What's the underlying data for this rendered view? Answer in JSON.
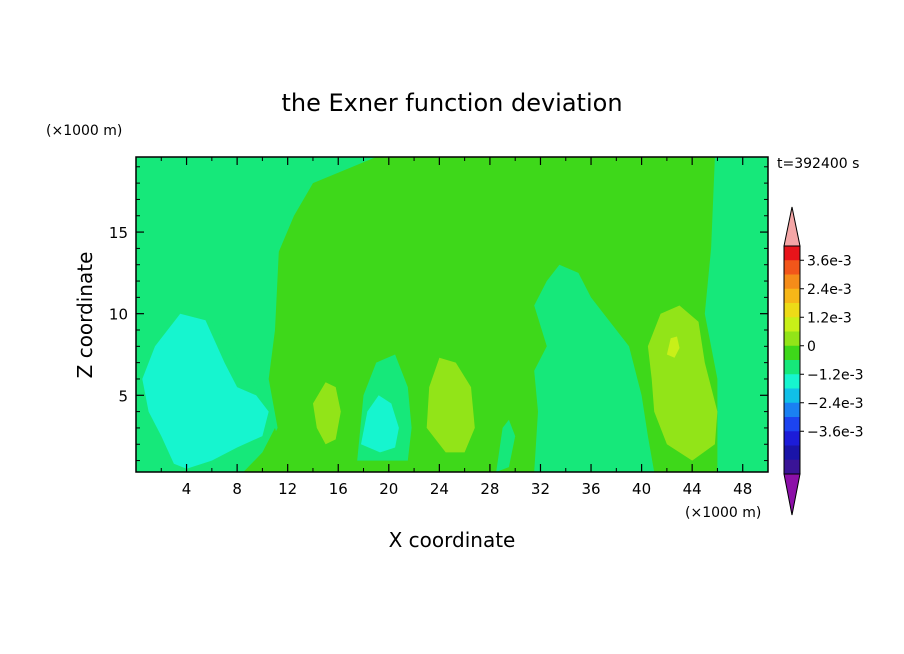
{
  "chart_data": {
    "type": "heatmap",
    "title": "the Exner function deviation",
    "xlabel": "X coordinate",
    "ylabel": "Z coordinate",
    "x_unit": "(×1000 m)",
    "y_unit": "(×1000 m)",
    "time_label": "t=392400 s",
    "xlim": [
      0,
      50
    ],
    "ylim": [
      0.3,
      19.6
    ],
    "x_ticks": [
      4,
      8,
      12,
      16,
      20,
      24,
      28,
      32,
      36,
      40,
      44,
      48
    ],
    "y_ticks": [
      5,
      10,
      15
    ],
    "colorbar": {
      "labels": [
        "3.6e-3",
        "2.4e-3",
        "1.2e-3",
        "0",
        "−1.2e-3",
        "−2.4e-3",
        "−3.6e-3"
      ],
      "colors_top_to_bottom": [
        "#f4a6a6",
        "#e8141a",
        "#f2561a",
        "#f58c19",
        "#f7b718",
        "#eddb17",
        "#c8f018",
        "#92e418",
        "#3ed81a",
        "#16e87a",
        "#16f5cf",
        "#10c0e8",
        "#1a80f2",
        "#1c44f0",
        "#1c1cd8",
        "#1a14a8",
        "#3a1496",
        "#8c10a8"
      ]
    },
    "regions": [
      {
        "level": "0",
        "color": "#3ed81a",
        "polygon": [
          [
            9.5,
            0.3
          ],
          [
            46,
            0.3
          ],
          [
            46,
            6
          ],
          [
            45,
            10
          ],
          [
            45.5,
            14
          ],
          [
            45.8,
            19.6
          ],
          [
            19,
            19.6
          ],
          [
            14,
            18
          ],
          [
            12.5,
            16
          ],
          [
            11.3,
            13.8
          ],
          [
            11,
            9
          ],
          [
            10.5,
            6
          ],
          [
            11.2,
            3
          ]
        ]
      },
      {
        "level": "0",
        "color": "#3ed81a",
        "polygon": [
          [
            8.5,
            0.3
          ],
          [
            12,
            0.3
          ],
          [
            11,
            3
          ],
          [
            10,
            1.5
          ]
        ]
      },
      {
        "level": "-1.2e-3",
        "color": "#16e87a",
        "polygon": [
          [
            0,
            6.5
          ],
          [
            2.5,
            9
          ],
          [
            6,
            9.5
          ],
          [
            7.8,
            7.5
          ],
          [
            9.5,
            5.5
          ],
          [
            10.5,
            4
          ],
          [
            10,
            2
          ],
          [
            8,
            1.5
          ],
          [
            6,
            1
          ],
          [
            5,
            0.5
          ],
          [
            0,
            0.3
          ]
        ]
      },
      {
        "level": "-1.2e-3",
        "color": "#16f5cf",
        "polygon": [
          [
            0.5,
            6
          ],
          [
            1.5,
            8
          ],
          [
            3.5,
            10
          ],
          [
            5.5,
            9.6
          ],
          [
            7,
            7
          ],
          [
            8,
            5.5
          ],
          [
            9.5,
            5
          ],
          [
            10.5,
            4
          ],
          [
            10,
            2.5
          ],
          [
            8,
            1.8
          ],
          [
            6,
            1
          ],
          [
            4,
            0.5
          ],
          [
            3,
            0.8
          ],
          [
            2,
            2.5
          ],
          [
            1,
            4
          ]
        ]
      },
      {
        "level": "-1.2e-3",
        "color": "#16e87a",
        "polygon": [
          [
            17.5,
            1
          ],
          [
            18,
            5
          ],
          [
            19,
            7
          ],
          [
            20.5,
            7.5
          ],
          [
            21.5,
            5.5
          ],
          [
            21.8,
            3
          ],
          [
            21.5,
            1
          ]
        ]
      },
      {
        "level": "-1.2e-3",
        "color": "#16f5cf",
        "polygon": [
          [
            17.8,
            2
          ],
          [
            18.3,
            4
          ],
          [
            19.2,
            5
          ],
          [
            20.2,
            4.5
          ],
          [
            20.8,
            3
          ],
          [
            20.5,
            1.8
          ],
          [
            19.3,
            1.5
          ]
        ]
      },
      {
        "level": "-1.2e-3",
        "color": "#16e87a",
        "polygon": [
          [
            28.5,
            0.3
          ],
          [
            29,
            3
          ],
          [
            29.5,
            3.5
          ],
          [
            30,
            2.5
          ],
          [
            29.5,
            0.6
          ]
        ]
      },
      {
        "level": "-1.2e-3",
        "color": "#16e87a",
        "polygon": [
          [
            31.5,
            0.3
          ],
          [
            31.8,
            4
          ],
          [
            31.5,
            6.5
          ],
          [
            32.5,
            8
          ],
          [
            31.5,
            10.5
          ],
          [
            32.5,
            12
          ],
          [
            33.5,
            13
          ],
          [
            35,
            12.5
          ],
          [
            36,
            11
          ],
          [
            37,
            10
          ],
          [
            39,
            8
          ],
          [
            40,
            5
          ],
          [
            40.5,
            2.5
          ],
          [
            41,
            0.3
          ]
        ]
      },
      {
        "level": "1.2e-3",
        "color": "#92e418",
        "polygon": [
          [
            14,
            4.5
          ],
          [
            14.3,
            3
          ],
          [
            15,
            2
          ],
          [
            15.8,
            2.3
          ],
          [
            16.2,
            4
          ],
          [
            15.8,
            5.5
          ],
          [
            15,
            5.8
          ]
        ]
      },
      {
        "level": "1.2e-3",
        "color": "#92e418",
        "polygon": [
          [
            23,
            3
          ],
          [
            23.2,
            5.5
          ],
          [
            24,
            7.3
          ],
          [
            25.3,
            7
          ],
          [
            26.5,
            5.5
          ],
          [
            26.8,
            3
          ],
          [
            26,
            1.5
          ],
          [
            24.5,
            1.5
          ]
        ]
      },
      {
        "level": "1.2e-3",
        "color": "#92e418",
        "polygon": [
          [
            40.5,
            8
          ],
          [
            41.5,
            10
          ],
          [
            43,
            10.5
          ],
          [
            44.5,
            9.5
          ],
          [
            45,
            7
          ],
          [
            46,
            4
          ],
          [
            45.8,
            2
          ],
          [
            44,
            1
          ],
          [
            42,
            2
          ],
          [
            41,
            4
          ],
          [
            40.8,
            6
          ]
        ]
      },
      {
        "level": "1.2e-3",
        "color": "#c8f018",
        "polygon": [
          [
            42,
            7.5
          ],
          [
            42.3,
            8.5
          ],
          [
            42.8,
            8.6
          ],
          [
            43,
            7.9
          ],
          [
            42.6,
            7.3
          ]
        ]
      }
    ]
  }
}
